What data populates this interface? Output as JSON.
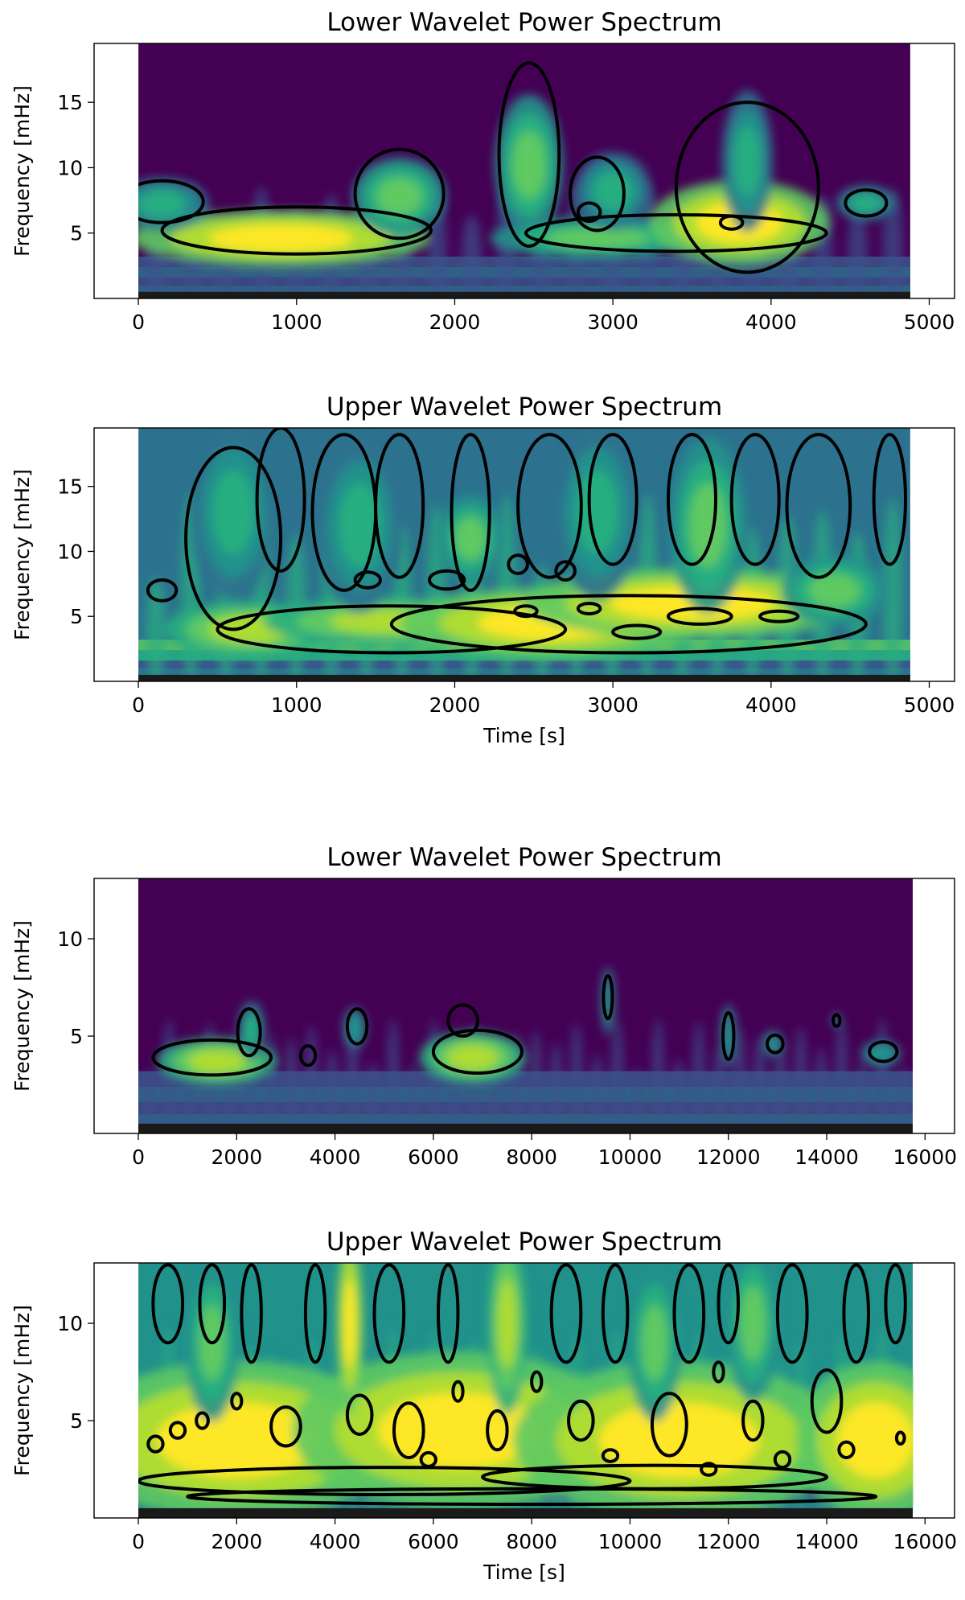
{
  "chart_data": [
    {
      "type": "heatmap",
      "title": "Lower Wavelet Power Spectrum",
      "xlabel": "",
      "ylabel": "Frequency [mHz]",
      "xlim": [
        -280,
        5160
      ],
      "ylim": [
        0,
        19.5
      ],
      "data_xrange": [
        0,
        4880
      ],
      "xticks": [
        0,
        1000,
        2000,
        3000,
        4000,
        5000
      ],
      "yticks": [
        5,
        10,
        15
      ],
      "colormap": "viridis",
      "grid": false,
      "high_power_regions": [
        {
          "x": 900,
          "y": 4.6,
          "rx": 700,
          "ry": 1.6,
          "level": 0.95
        },
        {
          "x": 1650,
          "y": 7.8,
          "rx": 220,
          "ry": 2.2,
          "level": 0.8
        },
        {
          "x": 2470,
          "y": 10.2,
          "rx": 160,
          "ry": 4.0,
          "level": 0.8
        },
        {
          "x": 2900,
          "y": 4.6,
          "rx": 500,
          "ry": 1.2,
          "level": 0.7
        },
        {
          "x": 3800,
          "y": 5.8,
          "rx": 420,
          "ry": 2.4,
          "level": 0.95
        },
        {
          "x": 3850,
          "y": 10.5,
          "rx": 120,
          "ry": 4.0,
          "level": 0.6
        },
        {
          "x": 3000,
          "y": 8.2,
          "rx": 180,
          "ry": 2.2,
          "level": 0.6
        },
        {
          "x": 150,
          "y": 7.2,
          "rx": 220,
          "ry": 1.5,
          "level": 0.65
        },
        {
          "x": 4600,
          "y": 7.3,
          "rx": 140,
          "ry": 1.0,
          "level": 0.6
        }
      ],
      "significance_contours": [
        {
          "x": 1000,
          "y": 5.2,
          "rx": 850,
          "ry": 1.8
        },
        {
          "x": 1650,
          "y": 8.0,
          "rx": 280,
          "ry": 3.4
        },
        {
          "x": 2470,
          "y": 11.0,
          "rx": 190,
          "ry": 7.0
        },
        {
          "x": 3400,
          "y": 5.0,
          "rx": 950,
          "ry": 1.4
        },
        {
          "x": 3850,
          "y": 8.5,
          "rx": 450,
          "ry": 6.5
        },
        {
          "x": 2900,
          "y": 8.0,
          "rx": 170,
          "ry": 2.8
        },
        {
          "x": 2850,
          "y": 6.6,
          "rx": 70,
          "ry": 0.7
        },
        {
          "x": 3750,
          "y": 5.8,
          "rx": 70,
          "ry": 0.5
        },
        {
          "x": 4600,
          "y": 7.3,
          "rx": 130,
          "ry": 1.0
        },
        {
          "x": 150,
          "y": 7.4,
          "rx": 260,
          "ry": 1.6
        }
      ]
    },
    {
      "type": "heatmap",
      "title": "Upper Wavelet Power Spectrum",
      "xlabel": "Time [s]",
      "ylabel": "Frequency [mHz]",
      "xlim": [
        -280,
        5160
      ],
      "ylim": [
        0,
        19.5
      ],
      "data_xrange": [
        0,
        4880
      ],
      "xticks": [
        0,
        1000,
        2000,
        3000,
        4000,
        5000
      ],
      "yticks": [
        5,
        10,
        15
      ],
      "colormap": "viridis",
      "grid": false,
      "high_power_regions": [
        {
          "x": 700,
          "y": 4.0,
          "rx": 400,
          "ry": 1.6,
          "level": 0.9
        },
        {
          "x": 1600,
          "y": 4.6,
          "rx": 600,
          "ry": 1.4,
          "level": 0.85
        },
        {
          "x": 2600,
          "y": 4.5,
          "rx": 700,
          "ry": 2.0,
          "level": 0.95
        },
        {
          "x": 3500,
          "y": 6.0,
          "rx": 800,
          "ry": 2.0,
          "level": 0.95
        },
        {
          "x": 2100,
          "y": 11.0,
          "rx": 150,
          "ry": 2.5,
          "level": 0.7
        },
        {
          "x": 3600,
          "y": 12.0,
          "rx": 180,
          "ry": 5.0,
          "level": 0.7
        },
        {
          "x": 4400,
          "y": 7.0,
          "rx": 250,
          "ry": 2.0,
          "level": 0.7
        },
        {
          "x": 600,
          "y": 13.0,
          "rx": 200,
          "ry": 5.0,
          "level": 0.6
        },
        {
          "x": 1400,
          "y": 12.0,
          "rx": 200,
          "ry": 5.0,
          "level": 0.6
        },
        {
          "x": 2900,
          "y": 13.0,
          "rx": 200,
          "ry": 5.0,
          "level": 0.6
        }
      ],
      "significance_contours": [
        {
          "x": 1600,
          "y": 4.0,
          "rx": 1100,
          "ry": 1.8
        },
        {
          "x": 3100,
          "y": 4.4,
          "rx": 1500,
          "ry": 2.2
        },
        {
          "x": 600,
          "y": 11.0,
          "rx": 300,
          "ry": 7.0
        },
        {
          "x": 900,
          "y": 14.0,
          "rx": 150,
          "ry": 5.5
        },
        {
          "x": 1300,
          "y": 13.0,
          "rx": 200,
          "ry": 6.0
        },
        {
          "x": 1650,
          "y": 13.5,
          "rx": 150,
          "ry": 5.5
        },
        {
          "x": 2100,
          "y": 13.0,
          "rx": 120,
          "ry": 6.0
        },
        {
          "x": 2600,
          "y": 13.5,
          "rx": 200,
          "ry": 5.5
        },
        {
          "x": 3000,
          "y": 14.0,
          "rx": 150,
          "ry": 5.0
        },
        {
          "x": 3500,
          "y": 14.0,
          "rx": 150,
          "ry": 5.0
        },
        {
          "x": 3900,
          "y": 14.0,
          "rx": 150,
          "ry": 5.0
        },
        {
          "x": 4300,
          "y": 13.5,
          "rx": 200,
          "ry": 5.5
        },
        {
          "x": 4750,
          "y": 14.0,
          "rx": 100,
          "ry": 5.0
        },
        {
          "x": 150,
          "y": 7.0,
          "rx": 90,
          "ry": 0.8
        },
        {
          "x": 1450,
          "y": 7.8,
          "rx": 80,
          "ry": 0.6
        },
        {
          "x": 1950,
          "y": 7.8,
          "rx": 110,
          "ry": 0.7
        },
        {
          "x": 2450,
          "y": 5.4,
          "rx": 70,
          "ry": 0.4
        },
        {
          "x": 2850,
          "y": 5.6,
          "rx": 70,
          "ry": 0.4
        },
        {
          "x": 3150,
          "y": 3.8,
          "rx": 150,
          "ry": 0.5
        },
        {
          "x": 3550,
          "y": 5.0,
          "rx": 200,
          "ry": 0.6
        },
        {
          "x": 4050,
          "y": 5.0,
          "rx": 120,
          "ry": 0.4
        },
        {
          "x": 2700,
          "y": 8.5,
          "rx": 60,
          "ry": 0.7
        },
        {
          "x": 2400,
          "y": 9.0,
          "rx": 60,
          "ry": 0.7
        }
      ]
    },
    {
      "type": "heatmap",
      "title": "Lower Wavelet Power Spectrum",
      "xlabel": "",
      "ylabel": "Frequency [mHz]",
      "xlim": [
        -900,
        16600
      ],
      "ylim": [
        0,
        13.1
      ],
      "data_xrange": [
        0,
        15750
      ],
      "xticks": [
        0,
        2000,
        4000,
        6000,
        8000,
        10000,
        12000,
        14000,
        16000
      ],
      "yticks": [
        5,
        10
      ],
      "colormap": "viridis",
      "grid": false,
      "high_power_regions": [
        {
          "x": 1600,
          "y": 3.7,
          "rx": 900,
          "ry": 0.9,
          "level": 0.85
        },
        {
          "x": 6800,
          "y": 3.9,
          "rx": 800,
          "ry": 1.0,
          "level": 0.85
        },
        {
          "x": 2300,
          "y": 5.3,
          "rx": 200,
          "ry": 1.1,
          "level": 0.6
        },
        {
          "x": 4400,
          "y": 5.4,
          "rx": 170,
          "ry": 0.8,
          "level": 0.55
        },
        {
          "x": 9550,
          "y": 6.8,
          "rx": 100,
          "ry": 1.3,
          "level": 0.5
        },
        {
          "x": 12000,
          "y": 5.0,
          "rx": 120,
          "ry": 1.2,
          "level": 0.5
        },
        {
          "x": 15100,
          "y": 4.1,
          "rx": 300,
          "ry": 0.5,
          "level": 0.5
        },
        {
          "x": 12900,
          "y": 4.6,
          "rx": 150,
          "ry": 0.5,
          "level": 0.45
        },
        {
          "x": 14200,
          "y": 5.8,
          "rx": 60,
          "ry": 0.3,
          "level": 0.45
        }
      ],
      "significance_contours": [
        {
          "x": 1500,
          "y": 3.9,
          "rx": 1200,
          "ry": 0.9
        },
        {
          "x": 2250,
          "y": 5.2,
          "rx": 230,
          "ry": 1.2
        },
        {
          "x": 3450,
          "y": 4.0,
          "rx": 150,
          "ry": 0.5
        },
        {
          "x": 4450,
          "y": 5.5,
          "rx": 200,
          "ry": 0.9
        },
        {
          "x": 6900,
          "y": 4.2,
          "rx": 900,
          "ry": 1.1
        },
        {
          "x": 6600,
          "y": 5.8,
          "rx": 300,
          "ry": 0.8
        },
        {
          "x": 9550,
          "y": 7.0,
          "rx": 90,
          "ry": 1.1
        },
        {
          "x": 12000,
          "y": 5.0,
          "rx": 110,
          "ry": 1.2
        },
        {
          "x": 12950,
          "y": 4.6,
          "rx": 160,
          "ry": 0.45
        },
        {
          "x": 14200,
          "y": 5.8,
          "rx": 70,
          "ry": 0.3
        },
        {
          "x": 15150,
          "y": 4.2,
          "rx": 280,
          "ry": 0.5
        }
      ]
    },
    {
      "type": "heatmap",
      "title": "Upper Wavelet Power Spectrum",
      "xlabel": "Time [s]",
      "ylabel": "Frequency [mHz]",
      "xlim": [
        -900,
        16600
      ],
      "ylim": [
        0,
        13.1
      ],
      "data_xrange": [
        0,
        15750
      ],
      "xticks": [
        0,
        2000,
        4000,
        6000,
        8000,
        10000,
        12000,
        14000,
        16000
      ],
      "yticks": [
        5,
        10
      ],
      "colormap": "viridis",
      "grid": false,
      "high_power_regions": [
        {
          "x": 2000,
          "y": 4.0,
          "rx": 2500,
          "ry": 3.0,
          "level": 0.95
        },
        {
          "x": 6500,
          "y": 4.5,
          "rx": 2500,
          "ry": 3.0,
          "level": 0.95
        },
        {
          "x": 11000,
          "y": 4.0,
          "rx": 2500,
          "ry": 3.0,
          "level": 0.95
        },
        {
          "x": 15000,
          "y": 4.0,
          "rx": 1200,
          "ry": 3.0,
          "level": 0.95
        },
        {
          "x": 4300,
          "y": 10.0,
          "rx": 200,
          "ry": 3.5,
          "level": 0.95
        },
        {
          "x": 7500,
          "y": 10.0,
          "rx": 300,
          "ry": 3.5,
          "level": 0.9
        },
        {
          "x": 1500,
          "y": 9.0,
          "rx": 400,
          "ry": 3.0,
          "level": 0.8
        },
        {
          "x": 10500,
          "y": 9.0,
          "rx": 400,
          "ry": 3.0,
          "level": 0.8
        },
        {
          "x": 12500,
          "y": 10.0,
          "rx": 400,
          "ry": 3.0,
          "level": 0.8
        }
      ],
      "significance_contours": [
        {
          "x": 5000,
          "y": 1.9,
          "rx": 5000,
          "ry": 0.7
        },
        {
          "x": 10500,
          "y": 2.1,
          "rx": 3500,
          "ry": 0.6
        },
        {
          "x": 8000,
          "y": 1.1,
          "rx": 7000,
          "ry": 0.4
        },
        {
          "x": 600,
          "y": 11.0,
          "rx": 300,
          "ry": 2.0
        },
        {
          "x": 1500,
          "y": 11.0,
          "rx": 250,
          "ry": 2.0
        },
        {
          "x": 2300,
          "y": 10.5,
          "rx": 200,
          "ry": 2.5
        },
        {
          "x": 3600,
          "y": 10.5,
          "rx": 200,
          "ry": 2.5
        },
        {
          "x": 5100,
          "y": 10.5,
          "rx": 300,
          "ry": 2.5
        },
        {
          "x": 6300,
          "y": 10.5,
          "rx": 200,
          "ry": 2.5
        },
        {
          "x": 8700,
          "y": 10.5,
          "rx": 300,
          "ry": 2.5
        },
        {
          "x": 9700,
          "y": 10.5,
          "rx": 250,
          "ry": 2.5
        },
        {
          "x": 11200,
          "y": 10.5,
          "rx": 300,
          "ry": 2.5
        },
        {
          "x": 12000,
          "y": 11.0,
          "rx": 200,
          "ry": 2.0
        },
        {
          "x": 13300,
          "y": 10.5,
          "rx": 300,
          "ry": 2.5
        },
        {
          "x": 14600,
          "y": 10.5,
          "rx": 250,
          "ry": 2.5
        },
        {
          "x": 15400,
          "y": 11.0,
          "rx": 200,
          "ry": 2.0
        },
        {
          "x": 3000,
          "y": 4.7,
          "rx": 300,
          "ry": 1.0
        },
        {
          "x": 4500,
          "y": 5.3,
          "rx": 250,
          "ry": 1.0
        },
        {
          "x": 5500,
          "y": 4.5,
          "rx": 300,
          "ry": 1.4
        },
        {
          "x": 7300,
          "y": 4.5,
          "rx": 200,
          "ry": 1.0
        },
        {
          "x": 9000,
          "y": 5.0,
          "rx": 250,
          "ry": 1.0
        },
        {
          "x": 10800,
          "y": 4.8,
          "rx": 350,
          "ry": 1.6
        },
        {
          "x": 12500,
          "y": 5.0,
          "rx": 200,
          "ry": 1.0
        },
        {
          "x": 14000,
          "y": 6.0,
          "rx": 300,
          "ry": 1.6
        },
        {
          "x": 350,
          "y": 3.8,
          "rx": 150,
          "ry": 0.4
        },
        {
          "x": 800,
          "y": 4.5,
          "rx": 150,
          "ry": 0.4
        },
        {
          "x": 1300,
          "y": 5.0,
          "rx": 120,
          "ry": 0.4
        },
        {
          "x": 2000,
          "y": 6.0,
          "rx": 100,
          "ry": 0.4
        },
        {
          "x": 6500,
          "y": 6.5,
          "rx": 100,
          "ry": 0.5
        },
        {
          "x": 8100,
          "y": 7.0,
          "rx": 100,
          "ry": 0.5
        },
        {
          "x": 11800,
          "y": 7.5,
          "rx": 100,
          "ry": 0.5
        },
        {
          "x": 13100,
          "y": 3.0,
          "rx": 150,
          "ry": 0.4
        },
        {
          "x": 14400,
          "y": 3.5,
          "rx": 150,
          "ry": 0.4
        },
        {
          "x": 15500,
          "y": 4.1,
          "rx": 80,
          "ry": 0.3
        },
        {
          "x": 11600,
          "y": 2.5,
          "rx": 150,
          "ry": 0.3
        },
        {
          "x": 9600,
          "y": 3.2,
          "rx": 150,
          "ry": 0.3
        },
        {
          "x": 5900,
          "y": 3.0,
          "rx": 150,
          "ry": 0.35
        }
      ]
    }
  ]
}
